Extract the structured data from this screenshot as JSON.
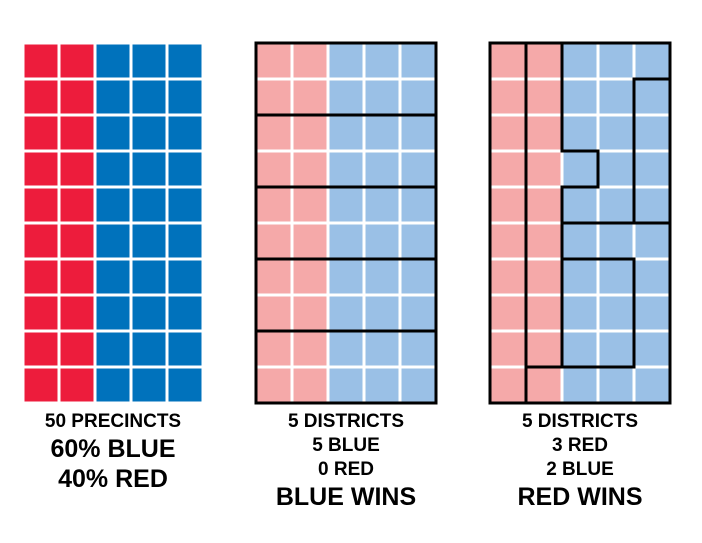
{
  "colors": {
    "red_strong": "#ed1c3c",
    "blue_strong": "#0072bc",
    "red_light": "#f5a9a9",
    "blue_light": "#9ac0e6",
    "border": "#000000",
    "background": "#ffffff"
  },
  "grid": {
    "rows": 10,
    "cols": 5,
    "red_cols": 2
  },
  "panels": [
    {
      "id": "precincts",
      "style": "strong",
      "districts": [],
      "caption": [
        {
          "text": "50 PRECINCTS",
          "size": "small"
        },
        {
          "text": "60% BLUE",
          "size": "big"
        },
        {
          "text": "40% RED",
          "size": "big"
        }
      ]
    },
    {
      "id": "blue-wins",
      "style": "light",
      "districts": [
        [
          [
            0,
            0
          ],
          [
            0,
            1
          ],
          [
            0,
            2
          ],
          [
            0,
            3
          ],
          [
            0,
            4
          ],
          [
            1,
            0
          ],
          [
            1,
            1
          ],
          [
            1,
            2
          ],
          [
            1,
            3
          ],
          [
            1,
            4
          ]
        ],
        [
          [
            2,
            0
          ],
          [
            2,
            1
          ],
          [
            2,
            2
          ],
          [
            2,
            3
          ],
          [
            2,
            4
          ],
          [
            3,
            0
          ],
          [
            3,
            1
          ],
          [
            3,
            2
          ],
          [
            3,
            3
          ],
          [
            3,
            4
          ]
        ],
        [
          [
            4,
            0
          ],
          [
            4,
            1
          ],
          [
            4,
            2
          ],
          [
            4,
            3
          ],
          [
            4,
            4
          ],
          [
            5,
            0
          ],
          [
            5,
            1
          ],
          [
            5,
            2
          ],
          [
            5,
            3
          ],
          [
            5,
            4
          ]
        ],
        [
          [
            6,
            0
          ],
          [
            6,
            1
          ],
          [
            6,
            2
          ],
          [
            6,
            3
          ],
          [
            6,
            4
          ],
          [
            7,
            0
          ],
          [
            7,
            1
          ],
          [
            7,
            2
          ],
          [
            7,
            3
          ],
          [
            7,
            4
          ]
        ],
        [
          [
            8,
            0
          ],
          [
            8,
            1
          ],
          [
            8,
            2
          ],
          [
            8,
            3
          ],
          [
            8,
            4
          ],
          [
            9,
            0
          ],
          [
            9,
            1
          ],
          [
            9,
            2
          ],
          [
            9,
            3
          ],
          [
            9,
            4
          ]
        ]
      ],
      "caption": [
        {
          "text": "5 DISTRICTS",
          "size": "small"
        },
        {
          "text": "5 BLUE",
          "size": "small"
        },
        {
          "text": "0 RED",
          "size": "small"
        },
        {
          "text": "BLUE WINS",
          "size": "big"
        }
      ]
    },
    {
      "id": "red-wins",
      "style": "light",
      "districts": [
        [
          [
            0,
            0
          ],
          [
            1,
            0
          ],
          [
            2,
            0
          ],
          [
            3,
            0
          ],
          [
            4,
            0
          ],
          [
            5,
            0
          ],
          [
            6,
            0
          ],
          [
            7,
            0
          ],
          [
            8,
            0
          ],
          [
            9,
            0
          ]
        ],
        [
          [
            0,
            1
          ],
          [
            1,
            1
          ],
          [
            2,
            1
          ],
          [
            3,
            1
          ],
          [
            3,
            2
          ],
          [
            4,
            1
          ],
          [
            5,
            1
          ],
          [
            6,
            1
          ],
          [
            7,
            1
          ],
          [
            8,
            1
          ]
        ],
        [
          [
            9,
            1
          ],
          [
            9,
            2
          ],
          [
            9,
            3
          ],
          [
            9,
            4
          ],
          [
            8,
            4
          ],
          [
            7,
            4
          ],
          [
            6,
            4
          ],
          [
            5,
            4
          ],
          [
            5,
            3
          ],
          [
            5,
            2
          ]
        ],
        [
          [
            0,
            2
          ],
          [
            0,
            3
          ],
          [
            0,
            4
          ],
          [
            1,
            2
          ],
          [
            1,
            3
          ],
          [
            2,
            2
          ],
          [
            2,
            3
          ],
          [
            3,
            3
          ],
          [
            4,
            2
          ],
          [
            4,
            3
          ]
        ],
        [
          [
            1,
            4
          ],
          [
            2,
            4
          ],
          [
            3,
            4
          ],
          [
            4,
            4
          ],
          [
            6,
            2
          ],
          [
            6,
            3
          ],
          [
            7,
            2
          ],
          [
            7,
            3
          ],
          [
            8,
            2
          ],
          [
            8,
            3
          ]
        ]
      ],
      "caption": [
        {
          "text": "5 DISTRICTS",
          "size": "small"
        },
        {
          "text": "3 RED",
          "size": "small"
        },
        {
          "text": "2 BLUE",
          "size": "small"
        },
        {
          "text": "RED WINS",
          "size": "big"
        }
      ]
    }
  ]
}
